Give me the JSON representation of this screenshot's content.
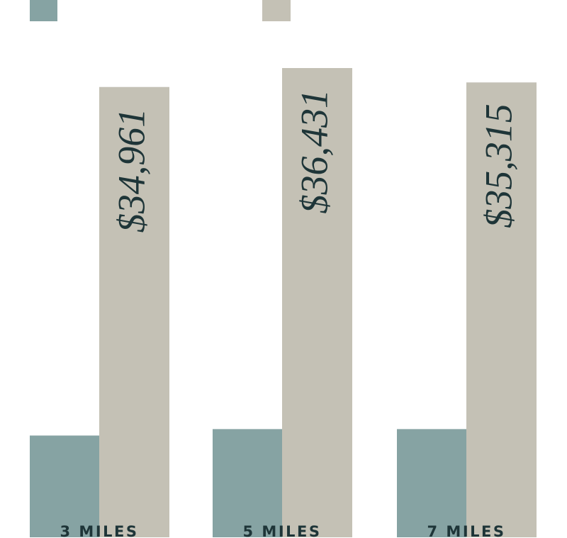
{
  "chart_data": {
    "type": "bar",
    "categories": [
      "3 MILES",
      "5 MILES",
      "7 MILES"
    ],
    "series": [
      {
        "color": "#86a3a3",
        "values": [
          7900,
          8400,
          8400
        ]
      },
      {
        "color": "#c4c1b5",
        "values": [
          34961,
          36431,
          35315
        ],
        "value_labels": [
          "$34,961",
          "$36,431",
          "$35,315"
        ]
      }
    ]
  }
}
